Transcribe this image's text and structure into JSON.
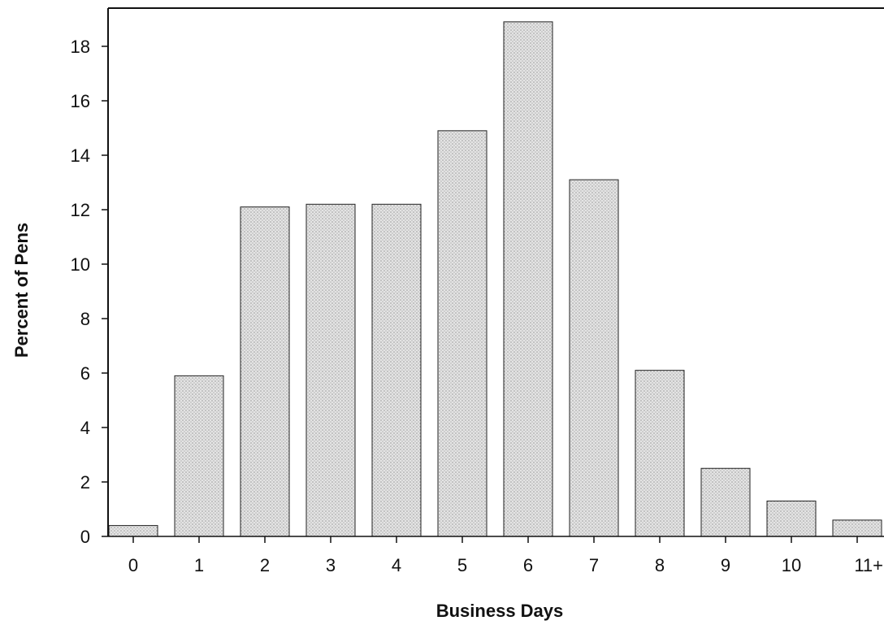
{
  "chart_data": {
    "type": "bar",
    "title": "",
    "xlabel": "Business Days",
    "ylabel": "Percent of Pens",
    "categories": [
      "0",
      "1",
      "2",
      "3",
      "4",
      "5",
      "6",
      "7",
      "8",
      "9",
      "10",
      "11+"
    ],
    "values": [
      0.4,
      5.9,
      12.1,
      12.2,
      12.2,
      14.9,
      18.9,
      13.1,
      6.1,
      2.5,
      1.3,
      0.6
    ],
    "ylim": [
      0,
      19
    ],
    "yticks": [
      "0",
      "2",
      "4",
      "6",
      "8",
      "10",
      "12",
      "14",
      "16",
      "18"
    ],
    "grid": false,
    "legend": "none",
    "colors": {
      "bar_fill": "#e4e4e4",
      "bar_dots": "#9a9a9a",
      "bar_edge": "#222222",
      "axis": "#111111"
    }
  }
}
